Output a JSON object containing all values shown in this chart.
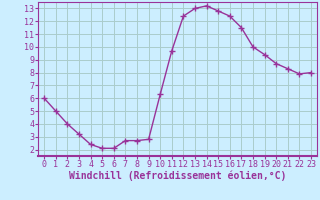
{
  "x": [
    0,
    1,
    2,
    3,
    4,
    5,
    6,
    7,
    8,
    9,
    10,
    11,
    12,
    13,
    14,
    15,
    16,
    17,
    18,
    19,
    20,
    21,
    22,
    23
  ],
  "y": [
    6.0,
    5.0,
    4.0,
    3.2,
    2.4,
    2.1,
    2.1,
    2.7,
    2.7,
    2.8,
    6.3,
    9.7,
    12.4,
    13.0,
    13.2,
    12.8,
    12.4,
    11.5,
    10.0,
    9.4,
    8.7,
    8.3,
    7.9,
    8.0
  ],
  "line_color": "#993399",
  "marker": "+",
  "markersize": 4,
  "linewidth": 1.0,
  "bg_color": "#cceeff",
  "grid_color": "#aacccc",
  "xlabel": "Windchill (Refroidissement éolien,°C)",
  "ylabel": "",
  "xlim": [
    -0.5,
    23.5
  ],
  "ylim": [
    1.5,
    13.5
  ],
  "yticks": [
    2,
    3,
    4,
    5,
    6,
    7,
    8,
    9,
    10,
    11,
    12,
    13
  ],
  "xticks": [
    0,
    1,
    2,
    3,
    4,
    5,
    6,
    7,
    8,
    9,
    10,
    11,
    12,
    13,
    14,
    15,
    16,
    17,
    18,
    19,
    20,
    21,
    22,
    23
  ],
  "tick_color": "#993399",
  "label_color": "#993399",
  "xlabel_fontsize": 7.0,
  "tick_fontsize": 6.0,
  "spine_color": "#993399",
  "spine_linewidth": 1.5
}
